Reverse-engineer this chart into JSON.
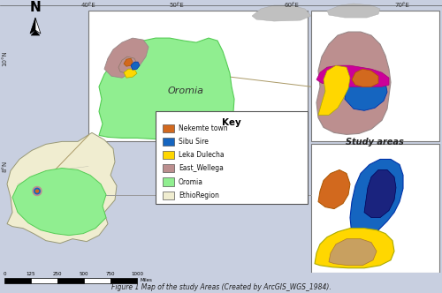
{
  "background_color": "#c8cfe0",
  "panel_bg": "#ffffff",
  "colors": {
    "nekemte_town": "#D2691E",
    "sibu_sire": "#1565C0",
    "leka_dulecha": "#FFD700",
    "east_wellega": "#BC8F8F",
    "oromia_green": "#90EE90",
    "ethio_region": "#F0EDD0",
    "magenta": "#CC0099",
    "navy": "#1a237e",
    "tan": "#C8A060",
    "gray_cloud": "#C0C0C0"
  },
  "legend_items": [
    {
      "label": "Nekemte town",
      "color": "#D2691E"
    },
    {
      "label": "Sibu Sire",
      "color": "#1565C0"
    },
    {
      "label": "Leka Dulecha",
      "color": "#FFD700"
    },
    {
      "label": "East_Wellega",
      "color": "#BC8F8F"
    },
    {
      "label": "Oromia",
      "color": "#90EE90"
    },
    {
      "label": "EthioRegion",
      "color": "#F0EDD0"
    }
  ],
  "lon_ticks": [
    "40°E",
    "50°E",
    "60°E",
    "70°E"
  ],
  "lat_ticks": [
    "10°N",
    "8°N"
  ],
  "scale_bar": {
    "values": [
      0,
      125,
      250,
      500,
      750,
      1000
    ],
    "unit": "Miles"
  },
  "fig_title": "Figure 1 Map of the study Areas (Created by ArcGIS_WGS_1984).",
  "oromia_label": "Oromia",
  "study_label": "Study areas"
}
